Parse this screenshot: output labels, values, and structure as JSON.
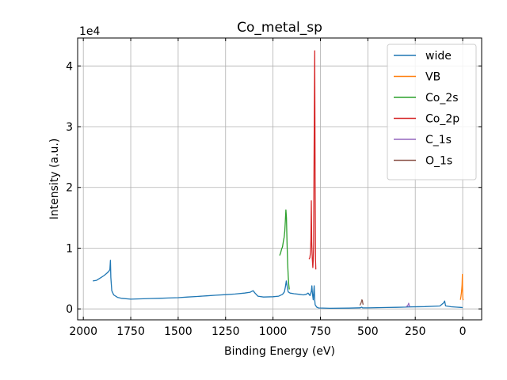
{
  "chart_data": {
    "type": "line",
    "title": "Co_metal_sp",
    "xlabel": "Binding Energy (eV)",
    "ylabel": "Intensity (a.u.)",
    "y_offset_label": "1e4",
    "xlim": [
      2030,
      -100
    ],
    "x_inverted": true,
    "ylim": [
      -1800,
      44600
    ],
    "x_ticks": [
      2000,
      1750,
      1500,
      1250,
      1000,
      750,
      500,
      250,
      0
    ],
    "x_tick_labels": [
      "2000",
      "1750",
      "1500",
      "1250",
      "1000",
      "750",
      "500",
      "250",
      "0"
    ],
    "y_ticks": [
      0,
      10000,
      20000,
      30000,
      40000
    ],
    "y_tick_labels": [
      "0",
      "1",
      "2",
      "3",
      "4"
    ],
    "grid": true,
    "legend_position": "top-right",
    "series": [
      {
        "name": "wide",
        "color": "#1f77b4",
        "points": [
          [
            1950,
            4600
          ],
          [
            1930,
            4700
          ],
          [
            1910,
            5100
          ],
          [
            1890,
            5500
          ],
          [
            1875,
            5900
          ],
          [
            1865,
            6200
          ],
          [
            1860,
            6500
          ],
          [
            1857,
            8000
          ],
          [
            1855,
            5200
          ],
          [
            1850,
            3000
          ],
          [
            1840,
            2300
          ],
          [
            1820,
            1900
          ],
          [
            1800,
            1750
          ],
          [
            1750,
            1600
          ],
          [
            1700,
            1650
          ],
          [
            1650,
            1700
          ],
          [
            1600,
            1750
          ],
          [
            1550,
            1800
          ],
          [
            1500,
            1850
          ],
          [
            1450,
            1950
          ],
          [
            1400,
            2050
          ],
          [
            1350,
            2150
          ],
          [
            1300,
            2250
          ],
          [
            1250,
            2350
          ],
          [
            1200,
            2450
          ],
          [
            1150,
            2600
          ],
          [
            1120,
            2750
          ],
          [
            1105,
            3000
          ],
          [
            1095,
            2600
          ],
          [
            1080,
            2100
          ],
          [
            1050,
            1950
          ],
          [
            1000,
            2000
          ],
          [
            970,
            2100
          ],
          [
            950,
            2400
          ],
          [
            940,
            2800
          ],
          [
            935,
            3600
          ],
          [
            930,
            4600
          ],
          [
            925,
            3600
          ],
          [
            920,
            2800
          ],
          [
            910,
            2600
          ],
          [
            890,
            2500
          ],
          [
            860,
            2400
          ],
          [
            840,
            2300
          ],
          [
            825,
            2400
          ],
          [
            815,
            2600
          ],
          [
            805,
            2200
          ],
          [
            798,
            2900
          ],
          [
            795,
            3800
          ],
          [
            792,
            2500
          ],
          [
            788,
            1500
          ],
          [
            786,
            2500
          ],
          [
            783,
            3800
          ],
          [
            780,
            1500
          ],
          [
            778,
            700
          ],
          [
            770,
            300
          ],
          [
            760,
            150
          ],
          [
            700,
            100
          ],
          [
            600,
            130
          ],
          [
            540,
            180
          ],
          [
            532,
            300
          ],
          [
            528,
            180
          ],
          [
            500,
            170
          ],
          [
            400,
            230
          ],
          [
            350,
            260
          ],
          [
            300,
            300
          ],
          [
            290,
            330
          ],
          [
            200,
            380
          ],
          [
            120,
            480
          ],
          [
            100,
            1000
          ],
          [
            95,
            1300
          ],
          [
            90,
            500
          ],
          [
            60,
            350
          ],
          [
            30,
            280
          ],
          [
            10,
            240
          ],
          [
            0,
            220
          ]
        ]
      },
      {
        "name": "VB",
        "color": "#ff7f0e",
        "points": [
          [
            12,
            1500
          ],
          [
            9,
            2100
          ],
          [
            7,
            2600
          ],
          [
            5,
            3300
          ],
          [
            3,
            4000
          ],
          [
            1.5,
            5700
          ],
          [
            0.5,
            3500
          ],
          [
            -0.5,
            1800
          ],
          [
            -2,
            1500
          ],
          [
            -3,
            1600
          ]
        ]
      },
      {
        "name": "Co_2s",
        "color": "#2ca02c",
        "points": [
          [
            965,
            8800
          ],
          [
            960,
            9200
          ],
          [
            955,
            9800
          ],
          [
            950,
            10200
          ],
          [
            945,
            11200
          ],
          [
            941,
            11800
          ],
          [
            938,
            12800
          ],
          [
            935,
            14500
          ],
          [
            932,
            16300
          ],
          [
            929,
            15000
          ],
          [
            926,
            11000
          ],
          [
            923,
            7500
          ],
          [
            920,
            5500
          ],
          [
            917,
            4000
          ],
          [
            914,
            3200
          ]
        ]
      },
      {
        "name": "Co_2p",
        "color": "#d62728",
        "points": [
          [
            810,
            8200
          ],
          [
            806,
            8400
          ],
          [
            802,
            9300
          ],
          [
            800,
            11500
          ],
          [
            798,
            17800
          ],
          [
            796,
            11000
          ],
          [
            793,
            8300
          ],
          [
            790,
            6800
          ],
          [
            788,
            8000
          ],
          [
            786,
            10500
          ],
          [
            784,
            21000
          ],
          [
            782,
            33000
          ],
          [
            780,
            42500
          ],
          [
            778,
            21000
          ],
          [
            776,
            8000
          ],
          [
            774,
            6500
          ]
        ]
      },
      {
        "name": "C_1s",
        "color": "#9467bd",
        "points": [
          [
            298,
            320
          ],
          [
            295,
            420
          ],
          [
            292,
            500
          ],
          [
            289,
            600
          ],
          [
            286,
            800
          ],
          [
            284.5,
            920
          ],
          [
            283,
            700
          ],
          [
            281,
            450
          ],
          [
            278,
            350
          ]
        ]
      },
      {
        "name": "O_1s",
        "color": "#8c564b",
        "points": [
          [
            542,
            600
          ],
          [
            539,
            800
          ],
          [
            536,
            950
          ],
          [
            533,
            1250
          ],
          [
            531,
            1500
          ],
          [
            529,
            1400
          ],
          [
            527,
            1000
          ],
          [
            525,
            700
          ]
        ]
      }
    ]
  }
}
